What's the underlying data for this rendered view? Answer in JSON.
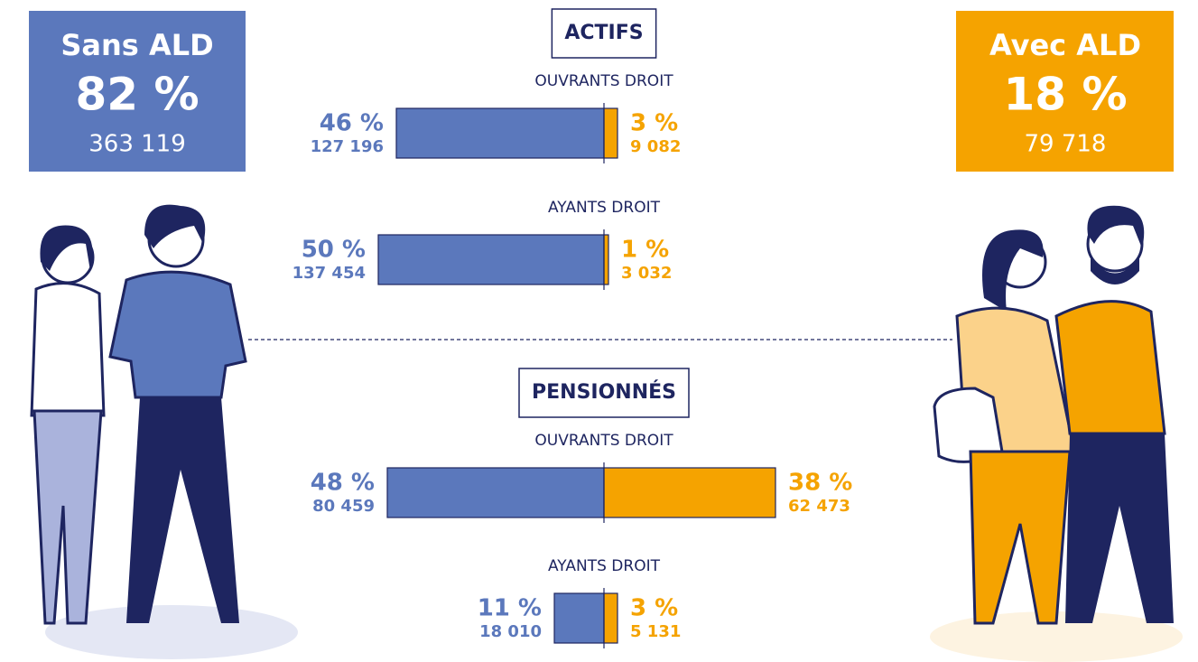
{
  "left": {
    "title": "Sans ALD",
    "percent_label": "82 %",
    "count": "363 119",
    "color": "#5b78bc"
  },
  "right": {
    "title": "Avec ALD",
    "percent_label": "18 %",
    "count": "79 718",
    "color": "#f5a300"
  },
  "groups": [
    {
      "title": "ACTIFS",
      "rows": [
        {
          "label": "OUVRANTS DROIT",
          "left": {
            "value": 46,
            "value_label": "46 %",
            "count": "127 196"
          },
          "right": {
            "value": 3,
            "value_label": "3 %",
            "count": "9 082"
          }
        },
        {
          "label": "AYANTS DROIT",
          "left": {
            "value": 50,
            "value_label": "50 %",
            "count": "137 454"
          },
          "right": {
            "value": 1,
            "value_label": "1 %",
            "count": "3 032"
          }
        }
      ]
    },
    {
      "title": "PENSIONNÉS",
      "rows": [
        {
          "label": "OUVRANTS DROIT",
          "left": {
            "value": 48,
            "value_label": "48 %",
            "count": "80 459"
          },
          "right": {
            "value": 38,
            "value_label": "38 %",
            "count": "62 473"
          }
        },
        {
          "label": "AYANTS DROIT",
          "left": {
            "value": 11,
            "value_label": "11 %",
            "count": "18 010"
          },
          "right": {
            "value": 3,
            "value_label": "3 %",
            "count": "5 131"
          }
        }
      ]
    }
  ]
}
